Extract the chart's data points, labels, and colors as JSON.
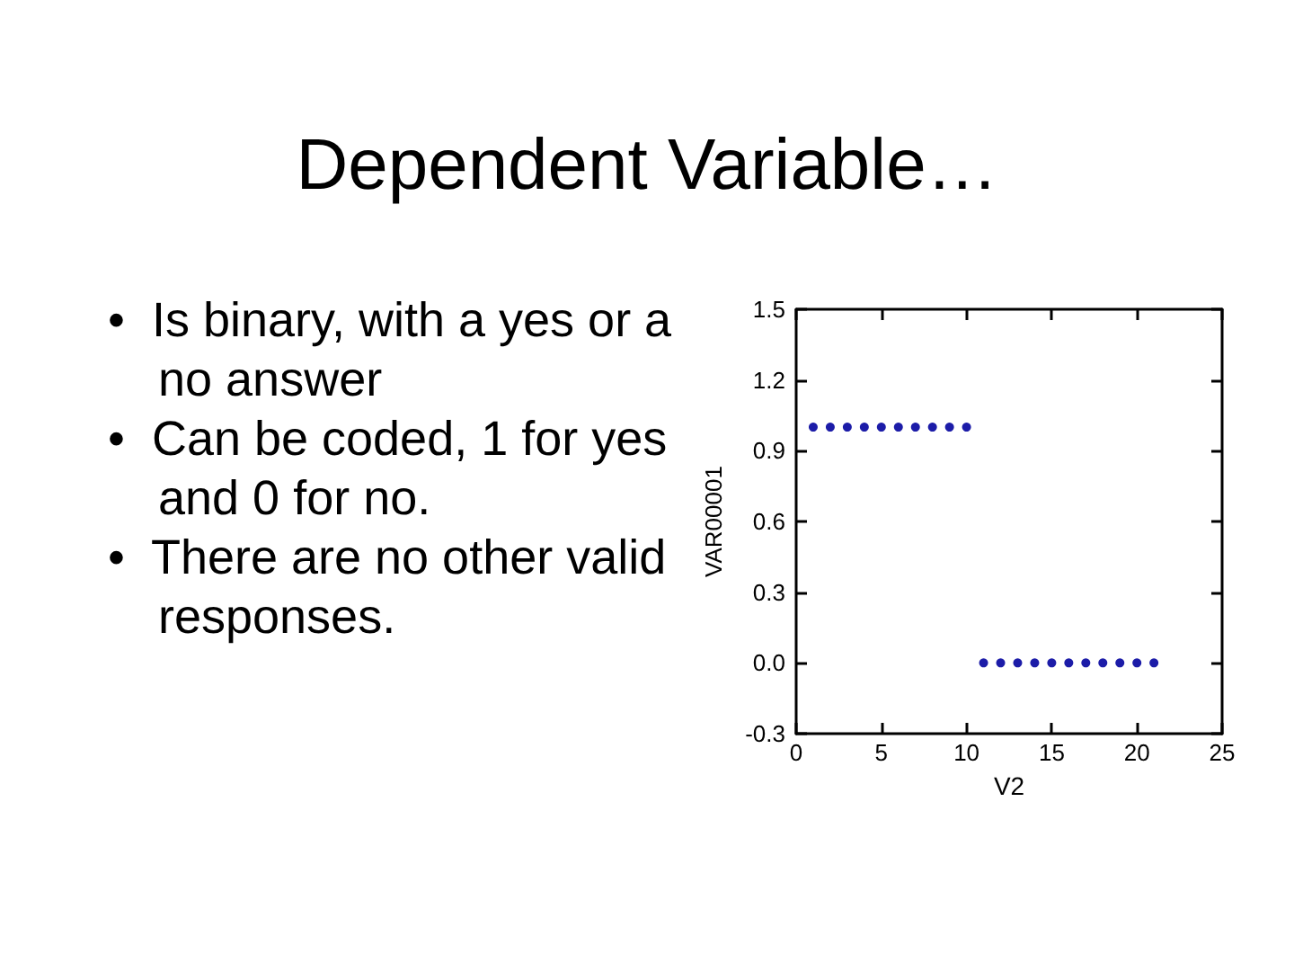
{
  "chart_data": {
    "type": "scatter",
    "title": "Dependent Variable…",
    "annotations": [
      "•  Is binary, with a yes or a no answer",
      "•  Can be coded, 1 for yes and 0 for no.",
      "•  There are no other valid responses."
    ],
    "xlabel": "V2",
    "ylabel": "VAR00001",
    "series": [
      {
        "color": "#1c1ca8",
        "x": [
          1,
          2,
          3,
          4,
          5,
          6,
          7,
          8,
          9,
          10,
          11,
          12,
          13,
          14,
          15,
          16,
          17,
          18,
          19,
          20,
          21
        ],
        "values": [
          1,
          1,
          1,
          1,
          1,
          1,
          1,
          1,
          1,
          1,
          0,
          0,
          0,
          0,
          0,
          0,
          0,
          0,
          0,
          0,
          0
        ]
      }
    ],
    "xlim": [
      0,
      25
    ],
    "xticks": [
      0,
      5,
      10,
      15,
      20,
      25
    ],
    "ylim": [
      -0.3,
      1.5
    ],
    "yticks": [
      -0.3,
      {
        "value": 0,
        "label": "0.0"
      },
      0.3,
      0.6,
      0.9,
      1.2,
      1.5
    ],
    "grid": false,
    "marker": "circle"
  }
}
